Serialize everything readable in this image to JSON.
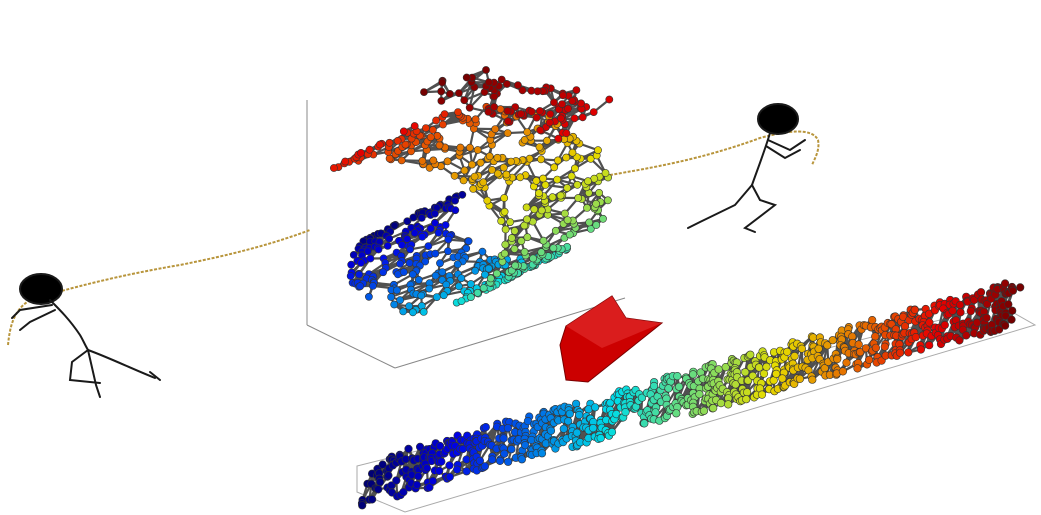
{
  "diagram": {
    "description_text": "",
    "figures": [
      {
        "role": "puller",
        "side": "left",
        "rope_color": "#b8953c"
      },
      {
        "role": "puller",
        "side": "right",
        "rope_color": "#b8953c"
      }
    ],
    "before": {
      "shape": "swiss-roll",
      "colormap": "jet"
    },
    "after": {
      "shape": "unrolled-strip",
      "colormap": "jet"
    },
    "arrow": {
      "direction": "down",
      "color": "#cc0000"
    },
    "colors": {
      "edge": "#505050",
      "axis": "#888888",
      "figure": "#1a1a1a"
    }
  }
}
